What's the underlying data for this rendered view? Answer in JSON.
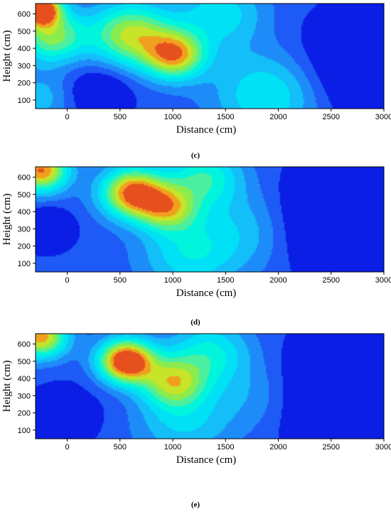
{
  "chart_data": [
    {
      "type": "heatmap",
      "panel_label": "(c)",
      "xlabel": "Distance (cm)",
      "ylabel": "Height (cm)",
      "xlim": [
        -300,
        3000
      ],
      "ylim": [
        50,
        660
      ],
      "xticks": [
        0,
        500,
        1000,
        1500,
        2000,
        2500,
        3000
      ],
      "yticks": [
        100,
        200,
        300,
        400,
        500,
        600
      ],
      "colormap": [
        "#0a1ee6",
        "#1e5af5",
        "#1e8cf8",
        "#14bef8",
        "#00e1f5",
        "#00f5dc",
        "#4af0a0",
        "#8aec4e",
        "#c8e428",
        "#f0a01e",
        "#e6501e"
      ],
      "level_range": [
        0,
        1
      ],
      "grid": false,
      "field_points": [
        {
          "x": -260,
          "y": 630,
          "value": 1.0,
          "spread": 190
        },
        {
          "x": -150,
          "y": 470,
          "value": 0.55,
          "spread": 320
        },
        {
          "x": 600,
          "y": 480,
          "value": 0.62,
          "spread": 380
        },
        {
          "x": 1020,
          "y": 360,
          "value": 0.7,
          "spread": 290
        },
        {
          "x": 1450,
          "y": 600,
          "value": 0.3,
          "spread": 420
        },
        {
          "x": 1900,
          "y": 130,
          "value": 0.35,
          "spread": 500
        },
        {
          "x": 300,
          "y": 150,
          "value": -0.2,
          "spread": 300
        },
        {
          "x": -250,
          "y": 110,
          "value": 0.2,
          "spread": 300
        },
        {
          "x": 2800,
          "y": 300,
          "value": -0.25,
          "spread": 600
        }
      ]
    },
    {
      "type": "heatmap",
      "panel_label": "(d)",
      "xlabel": "Distance (cm)",
      "ylabel": "Height (cm)",
      "xlim": [
        -300,
        3000
      ],
      "ylim": [
        50,
        660
      ],
      "xticks": [
        0,
        500,
        1000,
        1500,
        2000,
        2500,
        3000
      ],
      "yticks": [
        100,
        200,
        300,
        400,
        500,
        600
      ],
      "colormap": [
        "#0a1ee6",
        "#1e5af5",
        "#1e8cf8",
        "#14bef8",
        "#00e1f5",
        "#00f5dc",
        "#4af0a0",
        "#8aec4e",
        "#c8e428",
        "#f0a01e",
        "#e6501e"
      ],
      "level_range": [
        0,
        1
      ],
      "grid": false,
      "field_points": [
        {
          "x": -250,
          "y": 640,
          "value": 0.8,
          "spread": 260
        },
        {
          "x": 620,
          "y": 510,
          "value": 0.82,
          "spread": 300
        },
        {
          "x": 950,
          "y": 420,
          "value": 0.55,
          "spread": 280
        },
        {
          "x": 1300,
          "y": 600,
          "value": 0.4,
          "spread": 350
        },
        {
          "x": 1150,
          "y": 150,
          "value": 0.3,
          "spread": 450
        },
        {
          "x": -200,
          "y": 300,
          "value": -0.3,
          "spread": 220
        },
        {
          "x": 2600,
          "y": 350,
          "value": -0.35,
          "spread": 600
        },
        {
          "x": 1700,
          "y": 300,
          "value": 0.2,
          "spread": 500
        }
      ]
    },
    {
      "type": "heatmap",
      "panel_label": "(e)",
      "xlabel": "Distance (cm)",
      "ylabel": "Height (cm)",
      "xlim": [
        -300,
        3000
      ],
      "ylim": [
        50,
        660
      ],
      "xticks": [
        0,
        500,
        1000,
        1500,
        2000,
        2500,
        3000
      ],
      "yticks": [
        100,
        200,
        300,
        400,
        500,
        600
      ],
      "colormap": [
        "#0a1ee6",
        "#1e5af5",
        "#1e8cf8",
        "#14bef8",
        "#00e1f5",
        "#00f5dc",
        "#4af0a0",
        "#8aec4e",
        "#c8e428",
        "#f0a01e",
        "#e6501e"
      ],
      "level_range": [
        0,
        1
      ],
      "grid": false,
      "field_points": [
        {
          "x": -250,
          "y": 640,
          "value": 0.75,
          "spread": 250
        },
        {
          "x": 560,
          "y": 500,
          "value": 0.98,
          "spread": 260
        },
        {
          "x": 1000,
          "y": 380,
          "value": 0.55,
          "spread": 300
        },
        {
          "x": 1350,
          "y": 550,
          "value": 0.35,
          "spread": 380
        },
        {
          "x": 1100,
          "y": 150,
          "value": 0.25,
          "spread": 450
        },
        {
          "x": 0,
          "y": 200,
          "value": -0.1,
          "spread": 400
        },
        {
          "x": 2700,
          "y": 300,
          "value": -0.4,
          "spread": 650
        },
        {
          "x": 1800,
          "y": 300,
          "value": 0.15,
          "spread": 450
        }
      ]
    }
  ]
}
